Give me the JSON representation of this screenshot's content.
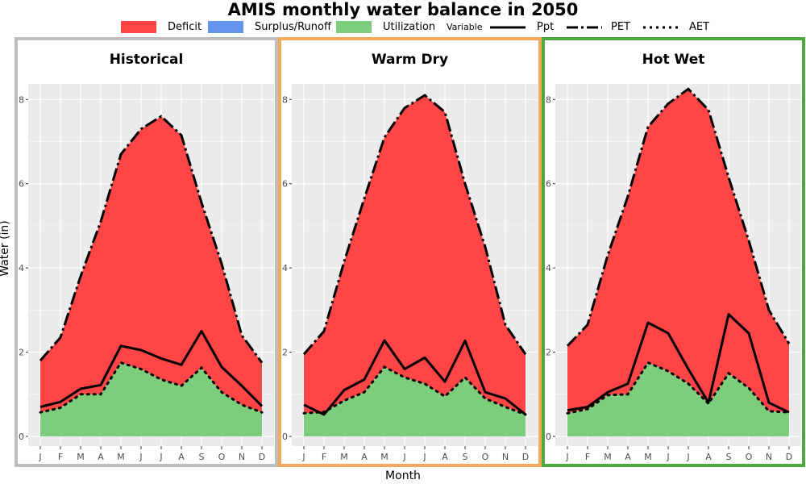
{
  "chart_data": {
    "type": "area",
    "title": "AMIS monthly water balance in 2050",
    "xlabel": "Month",
    "ylabel": "Water (in)",
    "categories": [
      "J",
      "F",
      "M",
      "A",
      "M",
      "J",
      "J",
      "A",
      "S",
      "O",
      "N",
      "D"
    ],
    "ylim": [
      0,
      8.6
    ],
    "yticks": [
      "0",
      "2",
      "4",
      "6",
      "8"
    ],
    "legend": {
      "fill": [
        {
          "label": "Deficit",
          "color": "#ff4545"
        },
        {
          "label": "Surplus/Runoff",
          "color": "#6495ed"
        },
        {
          "label": "Utilization",
          "color": "#7ccd7c"
        }
      ],
      "variable_title": "Variable",
      "lines": [
        {
          "label": "Ppt",
          "dash": "solid"
        },
        {
          "label": "PET",
          "dash": "longdash-dot"
        },
        {
          "label": "AET",
          "dash": "dotted"
        }
      ]
    },
    "panels": [
      {
        "name": "Historical",
        "border": "#bebebe",
        "PET": [
          1.8,
          2.35,
          3.8,
          5.1,
          6.7,
          7.3,
          7.6,
          7.15,
          5.55,
          4.1,
          2.4,
          1.75
        ],
        "Ppt": [
          0.7,
          0.82,
          1.13,
          1.22,
          2.15,
          2.05,
          1.85,
          1.7,
          2.5,
          1.65,
          1.2,
          0.72
        ],
        "AET": [
          0.57,
          0.68,
          1.0,
          1.0,
          1.75,
          1.6,
          1.35,
          1.2,
          1.63,
          1.05,
          0.75,
          0.57
        ]
      },
      {
        "name": "Warm Dry",
        "border": "#f4a85a",
        "PET": [
          1.95,
          2.5,
          4.15,
          5.65,
          7.1,
          7.8,
          8.1,
          7.7,
          6.0,
          4.5,
          2.65,
          1.95
        ],
        "Ppt": [
          0.75,
          0.52,
          1.1,
          1.35,
          2.28,
          1.6,
          1.87,
          1.3,
          2.27,
          1.05,
          0.9,
          0.52
        ],
        "AET": [
          0.55,
          0.58,
          0.85,
          1.05,
          1.65,
          1.4,
          1.25,
          0.95,
          1.4,
          0.9,
          0.7,
          0.52
        ]
      },
      {
        "name": "Hot Wet",
        "border": "#4ea93f",
        "PET": [
          2.15,
          2.65,
          4.3,
          5.7,
          7.35,
          7.9,
          8.25,
          7.75,
          6.15,
          4.65,
          3.0,
          2.2
        ],
        "Ppt": [
          0.62,
          0.7,
          1.05,
          1.25,
          2.7,
          2.45,
          1.6,
          0.8,
          2.9,
          2.45,
          0.8,
          0.57
        ],
        "AET": [
          0.55,
          0.65,
          0.98,
          1.0,
          1.75,
          1.55,
          1.25,
          0.78,
          1.5,
          1.15,
          0.6,
          0.57
        ]
      }
    ]
  }
}
